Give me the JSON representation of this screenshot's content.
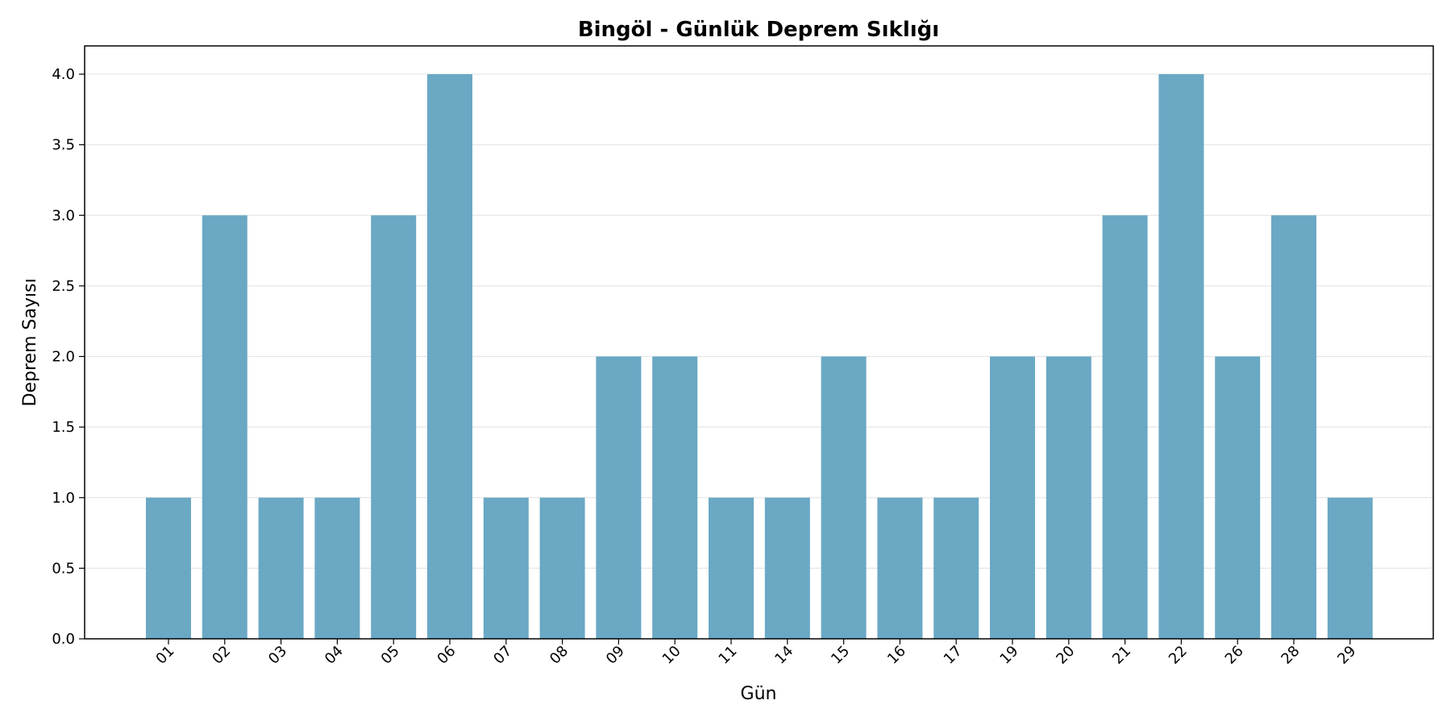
{
  "chart_data": {
    "type": "bar",
    "title": "Bingöl - Günlük Deprem Sıklığı",
    "xlabel": "Gün",
    "ylabel": "Deprem Sayısı",
    "categories": [
      "01",
      "02",
      "03",
      "04",
      "05",
      "06",
      "07",
      "08",
      "09",
      "10",
      "11",
      "14",
      "15",
      "16",
      "17",
      "19",
      "20",
      "21",
      "22",
      "26",
      "28",
      "29"
    ],
    "values": [
      1,
      3,
      1,
      1,
      3,
      4,
      1,
      1,
      2,
      2,
      1,
      1,
      2,
      1,
      1,
      2,
      2,
      3,
      4,
      2,
      3,
      1
    ],
    "ylim": [
      0,
      4.2
    ],
    "yticks": [
      "0.0",
      "0.5",
      "1.0",
      "1.5",
      "2.0",
      "2.5",
      "3.0",
      "3.5",
      "4.0"
    ],
    "grid": "y",
    "bar_color": "#6aa8c4"
  }
}
